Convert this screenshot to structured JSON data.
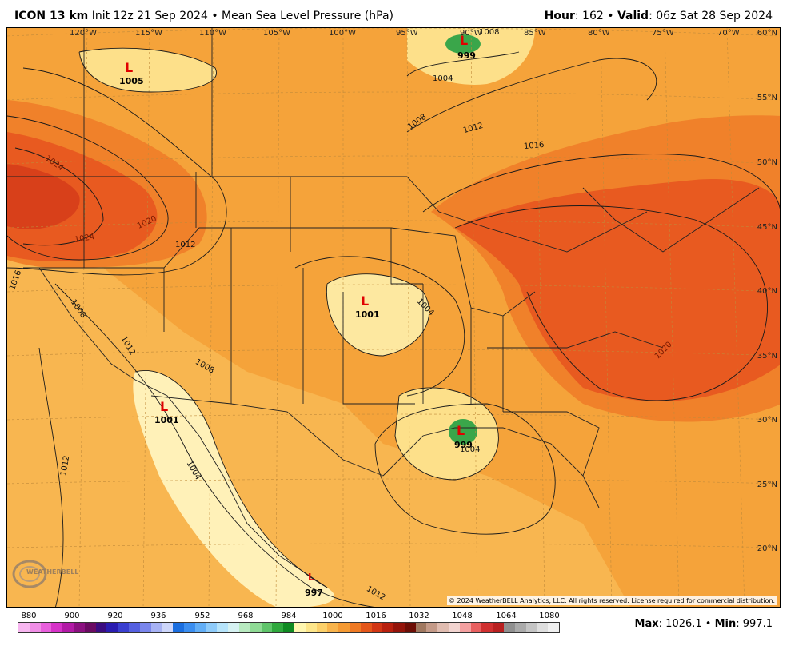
{
  "header": {
    "model": "ICON 13 km",
    "init": "Init 12z 21 Sep 2024",
    "sep": "•",
    "title": "Mean Sea Level Pressure (hPa)",
    "hour_label": "Hour",
    "hour_value": ": 162",
    "valid_label": "Valid",
    "valid_value": ": 06z Sat 28 Sep 2024"
  },
  "map": {
    "lon_labels": [
      "120°W",
      "115°W",
      "110°W",
      "105°W",
      "100°W",
      "95°W",
      "90°W",
      "85°W",
      "80°W",
      "75°W",
      "70°W"
    ],
    "lat_labels": [
      "60°N",
      "55°N",
      "50°N",
      "45°N",
      "40°N",
      "35°N",
      "30°N",
      "25°N",
      "20°N"
    ],
    "isobar_labels": [
      "1024",
      "1024",
      "1020",
      "1012",
      "1016",
      "1008",
      "1012",
      "1008",
      "1004",
      "1008",
      "1012",
      "1016",
      "1004",
      "1008",
      "1004",
      "1020",
      "1012",
      "1004",
      "1012"
    ],
    "lows": [
      {
        "letter": "L",
        "value": "1005"
      },
      {
        "letter": "L",
        "value": "999"
      },
      {
        "letter": "L",
        "value": "1001"
      },
      {
        "letter": "L",
        "value": "1001"
      },
      {
        "letter": "L",
        "value": "999"
      },
      {
        "letter": "L",
        "value": "997"
      }
    ],
    "copyright": "© 2024 WeatherBELL Analytics, LLC. All rights reserved. License required for commercial distribution.",
    "logo_text": "WEATHERBELL"
  },
  "colorbar": {
    "ticks": [
      "880",
      "900",
      "920",
      "936",
      "952",
      "968",
      "984",
      "1000",
      "1016",
      "1032",
      "1048",
      "1064",
      "1080"
    ],
    "colors": [
      "#f7b6f0",
      "#f08ee6",
      "#e85fdc",
      "#d632c8",
      "#b21aa6",
      "#8b1080",
      "#6a0a62",
      "#3b0c80",
      "#2a1cb0",
      "#3a3fd0",
      "#5560e0",
      "#7a86ec",
      "#a7b2f4",
      "#cdd6fa",
      "#1a6ee0",
      "#3b8ef0",
      "#62aef6",
      "#8ecbfa",
      "#b6e4fb",
      "#d6f2f2",
      "#b8eac0",
      "#8fda95",
      "#5fc46a",
      "#2fa83d",
      "#0f8a22",
      "#fff7b0",
      "#fde68a",
      "#fbd06a",
      "#f8b44c",
      "#f59a33",
      "#ef7a24",
      "#e4561a",
      "#d23614",
      "#b8200e",
      "#94140a",
      "#6d0e06",
      "#a07860",
      "#c49a88",
      "#e0bcb0",
      "#f2d4d0",
      "#f4a0a0",
      "#e86060",
      "#d03030",
      "#b82020",
      "#909090",
      "#aaaaaa",
      "#c4c4c4",
      "#dedede",
      "#f0f0f0"
    ],
    "max_label": "Max",
    "max_value": ": 1026.1",
    "sep": "•",
    "min_label": "Min",
    "min_value": ": 997.1"
  }
}
